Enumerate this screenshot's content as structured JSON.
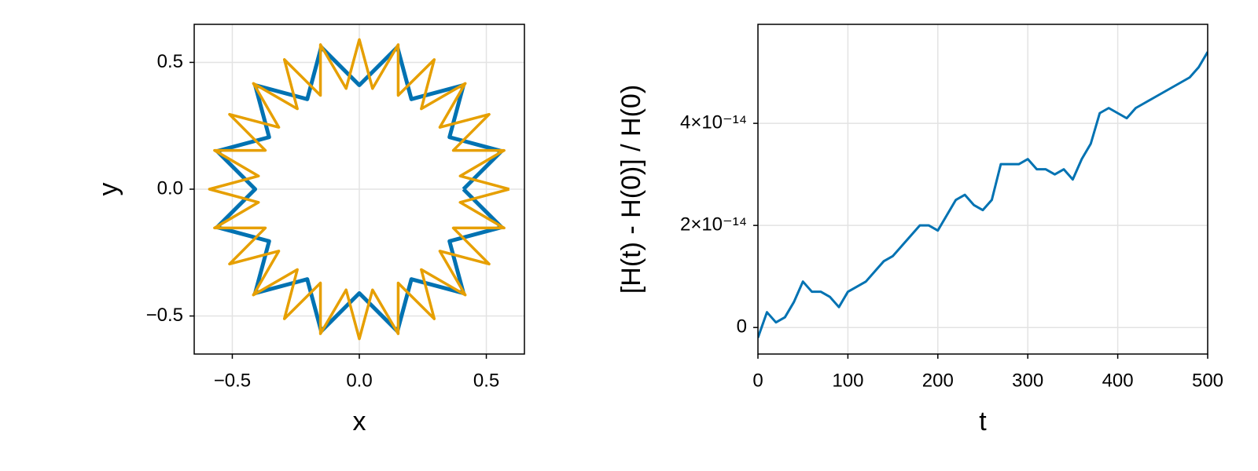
{
  "chart_data": [
    {
      "type": "line",
      "xlabel": "x",
      "ylabel": "y",
      "xlim": [
        -0.65,
        0.65
      ],
      "ylim": [
        -0.65,
        0.65
      ],
      "xticks": [
        {
          "value": -0.5,
          "label": "−0.5"
        },
        {
          "value": 0,
          "label": "0.0"
        },
        0.5
      ],
      "yticks": [
        {
          "value": -0.5,
          "label": "−0.5"
        },
        {
          "value": 0,
          "label": "0.0"
        },
        0.5
      ],
      "grid": true,
      "series": [
        {
          "color": "#0072b2",
          "x": [
            0.41,
            0.56,
            0.355,
            0.41,
            0.205,
            0.15,
            0,
            -0.15,
            -0.205,
            -0.41,
            -0.355,
            -0.56,
            -0.41,
            -0.56,
            -0.355,
            -0.41,
            -0.205,
            -0.15,
            0,
            0.15,
            0.205,
            0.41,
            0.355,
            0.56,
            0.41
          ],
          "values": [
            0,
            0.15,
            0.205,
            0.41,
            0.355,
            0.56,
            0.41,
            0.56,
            0.355,
            0.41,
            0.205,
            0.15,
            0,
            -0.15,
            -0.205,
            -0.41,
            -0.355,
            -0.56,
            -0.41,
            -0.56,
            -0.355,
            -0.41,
            -0.205,
            -0.15,
            0
          ]
        },
        {
          "color": "#e69f00",
          "x": [
            0.59,
            0.397,
            0.57,
            0.37,
            0.511,
            0.317,
            0.417,
            0.244,
            0.295,
            0.153,
            0.153,
            0.052,
            0,
            -0.052,
            -0.153,
            -0.153,
            -0.295,
            -0.244,
            -0.417,
            -0.317,
            -0.511,
            -0.37,
            -0.57,
            -0.397,
            -0.59,
            -0.397,
            -0.57,
            -0.37,
            -0.511,
            -0.317,
            -0.417,
            -0.244,
            -0.295,
            -0.153,
            -0.153,
            -0.052,
            0,
            0.052,
            0.153,
            0.153,
            0.295,
            0.244,
            0.417,
            0.317,
            0.511,
            0.37,
            0.57,
            0.397,
            0.59
          ],
          "values": [
            0,
            0.052,
            0.153,
            0.153,
            0.295,
            0.244,
            0.417,
            0.317,
            0.511,
            0.37,
            0.57,
            0.397,
            0.59,
            0.397,
            0.57,
            0.37,
            0.511,
            0.317,
            0.417,
            0.244,
            0.295,
            0.153,
            0.153,
            0.052,
            0,
            -0.052,
            -0.153,
            -0.153,
            -0.295,
            -0.244,
            -0.417,
            -0.317,
            -0.511,
            -0.37,
            -0.57,
            -0.397,
            -0.59,
            -0.397,
            -0.57,
            -0.37,
            -0.511,
            -0.317,
            -0.417,
            -0.244,
            -0.295,
            -0.153,
            -0.153,
            -0.052,
            0
          ]
        }
      ]
    },
    {
      "type": "line",
      "xlabel": "t",
      "ylabel": "[H(t) - H(0)] / H(0)",
      "xlim": [
        0,
        500
      ],
      "ylim": [
        -5.2e-15,
        5.94e-14
      ],
      "xticks": [
        0,
        100,
        200,
        300,
        400,
        500
      ],
      "yticks": [
        0,
        {
          "value": 2e-14,
          "label": "2×10⁻¹⁴"
        },
        {
          "value": 4e-14,
          "label": "4×10⁻¹⁴"
        }
      ],
      "grid": true,
      "series": [
        {
          "color": "#0072b2",
          "x": [
            0,
            10,
            20,
            30,
            40,
            50,
            60,
            70,
            80,
            90,
            100,
            110,
            120,
            130,
            140,
            150,
            160,
            170,
            180,
            190,
            200,
            210,
            220,
            230,
            240,
            250,
            260,
            270,
            280,
            290,
            300,
            310,
            320,
            330,
            340,
            350,
            360,
            370,
            380,
            390,
            400,
            410,
            420,
            430,
            440,
            450,
            460,
            470,
            480,
            490,
            500
          ],
          "values": [
            -2e-15,
            3e-15,
            1e-15,
            2e-15,
            5e-15,
            9e-15,
            7e-15,
            7e-15,
            6e-15,
            4e-15,
            7e-15,
            8e-15,
            9e-15,
            1.1e-14,
            1.3e-14,
            1.4e-14,
            1.6e-14,
            1.8e-14,
            2e-14,
            2e-14,
            1.9e-14,
            2.2e-14,
            2.5e-14,
            2.6e-14,
            2.4e-14,
            2.3e-14,
            2.5e-14,
            3.2e-14,
            3.2e-14,
            3.2e-14,
            3.3e-14,
            3.1e-14,
            3.1e-14,
            3e-14,
            3.1e-14,
            2.9e-14,
            3.3e-14,
            3.6e-14,
            4.2e-14,
            4.3e-14,
            4.2e-14,
            4.1e-14,
            4.3e-14,
            4.4e-14,
            4.5e-14,
            4.6e-14,
            4.7e-14,
            4.8e-14,
            4.9e-14,
            5.1e-14,
            5.4e-14
          ]
        }
      ]
    }
  ]
}
